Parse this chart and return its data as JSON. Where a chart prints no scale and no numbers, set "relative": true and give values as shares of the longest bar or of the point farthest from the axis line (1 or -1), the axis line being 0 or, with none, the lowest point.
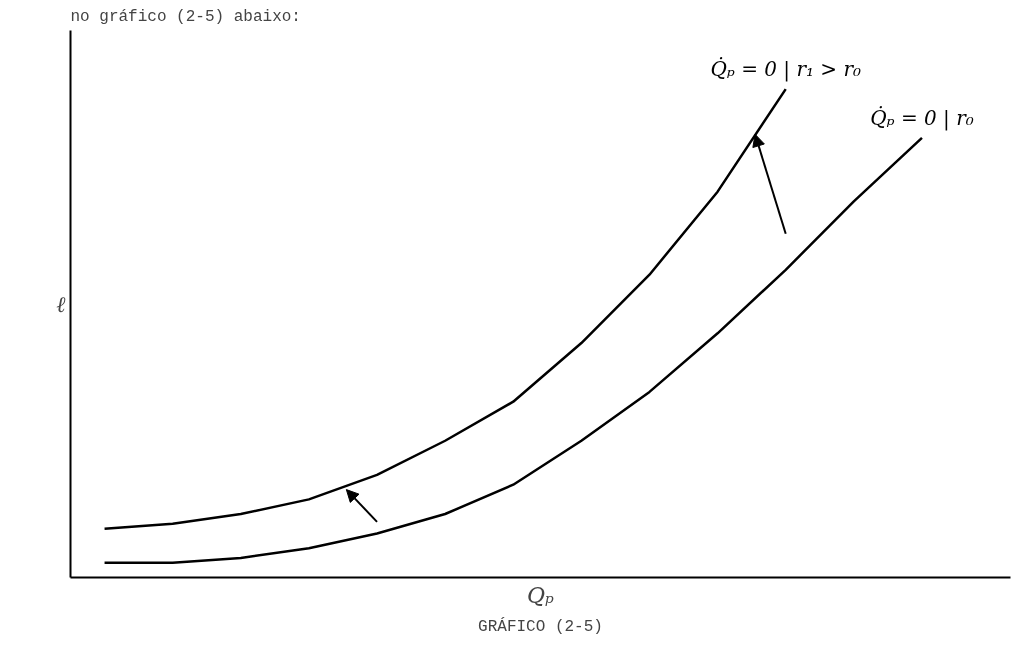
{
  "chart_data": {
    "type": "line",
    "relative": true,
    "title": "no gráfico (2-5) abaixo:",
    "xlabel": "Qₚ",
    "ylabel": "ℓ",
    "annotations": [
      "GRÁFICO (2-5)"
    ],
    "tick_labels": false,
    "marker": "none",
    "line_style": "solid",
    "categories": [
      null,
      null,
      null,
      null,
      null,
      null,
      null,
      null,
      null,
      null,
      null,
      null,
      null
    ],
    "series": [
      {
        "name": "Q̇ₚ = 0 | r₁ > r₀",
        "color": "#000000",
        "values": [
          0.1,
          0.11,
          0.13,
          0.16,
          0.21,
          0.28,
          0.36,
          0.48,
          0.62,
          0.79,
          1.0,
          null,
          null
        ]
      },
      {
        "name": "Q̇ₚ = 0 | r₀",
        "color": "#000000",
        "values": [
          0.03,
          0.03,
          0.04,
          0.06,
          0.09,
          0.13,
          0.19,
          0.28,
          0.38,
          0.5,
          0.63,
          0.77,
          0.9
        ]
      }
    ]
  }
}
